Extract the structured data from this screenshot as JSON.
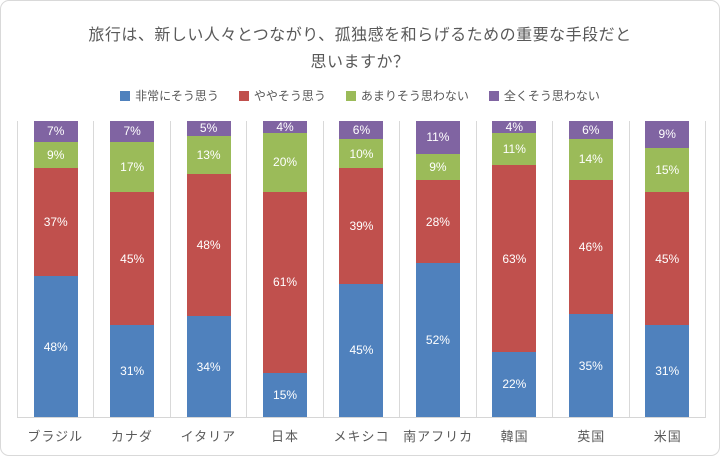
{
  "title": {
    "line1": "旅行は、新しい人々とつながり、孤独感を和らげるための重要な手段だと",
    "line2": "思いますか？"
  },
  "legend": [
    {
      "label": "非常にそう思う",
      "color": "#4f81bd"
    },
    {
      "label": "ややそう思う",
      "color": "#c0504d"
    },
    {
      "label": "あまりそう思わない",
      "color": "#9bbb59"
    },
    {
      "label": "全くそう思わない",
      "color": "#8064a2"
    }
  ],
  "chart_data": {
    "type": "bar",
    "variant": "100%-stacked-column",
    "title": "旅行は、新しい人々とつながり、孤独感を和らげるための重要な手段だと思いますか？",
    "categories": [
      "ブラジル",
      "カナダ",
      "イタリア",
      "日本",
      "メキシコ",
      "南アフリカ",
      "韓国",
      "英国",
      "米国"
    ],
    "series": [
      {
        "name": "非常にそう思う",
        "color": "#4f81bd",
        "values": [
          48,
          31,
          34,
          15,
          45,
          52,
          22,
          35,
          31
        ]
      },
      {
        "name": "ややそう思う",
        "color": "#c0504d",
        "values": [
          37,
          45,
          48,
          61,
          39,
          28,
          63,
          46,
          45
        ]
      },
      {
        "name": "あまりそう思わない",
        "color": "#9bbb59",
        "values": [
          9,
          17,
          13,
          20,
          10,
          9,
          11,
          14,
          15
        ]
      },
      {
        "name": "全くそう思わない",
        "color": "#8064a2",
        "values": [
          7,
          7,
          5,
          4,
          6,
          11,
          4,
          6,
          9
        ]
      }
    ],
    "value_suffix": "%",
    "data_labels": "inside-center-white",
    "ylim": [
      0,
      100
    ],
    "y_axis_visible": false,
    "grid": "vertical-category-separators",
    "legend_position": "top-center"
  },
  "colors": {
    "text": "#595959",
    "grid": "#d9d9d9",
    "axis": "#d6d6d6",
    "background": "#ffffff",
    "bar_label": "#ffffff",
    "card_border": "#d9d9d9"
  }
}
